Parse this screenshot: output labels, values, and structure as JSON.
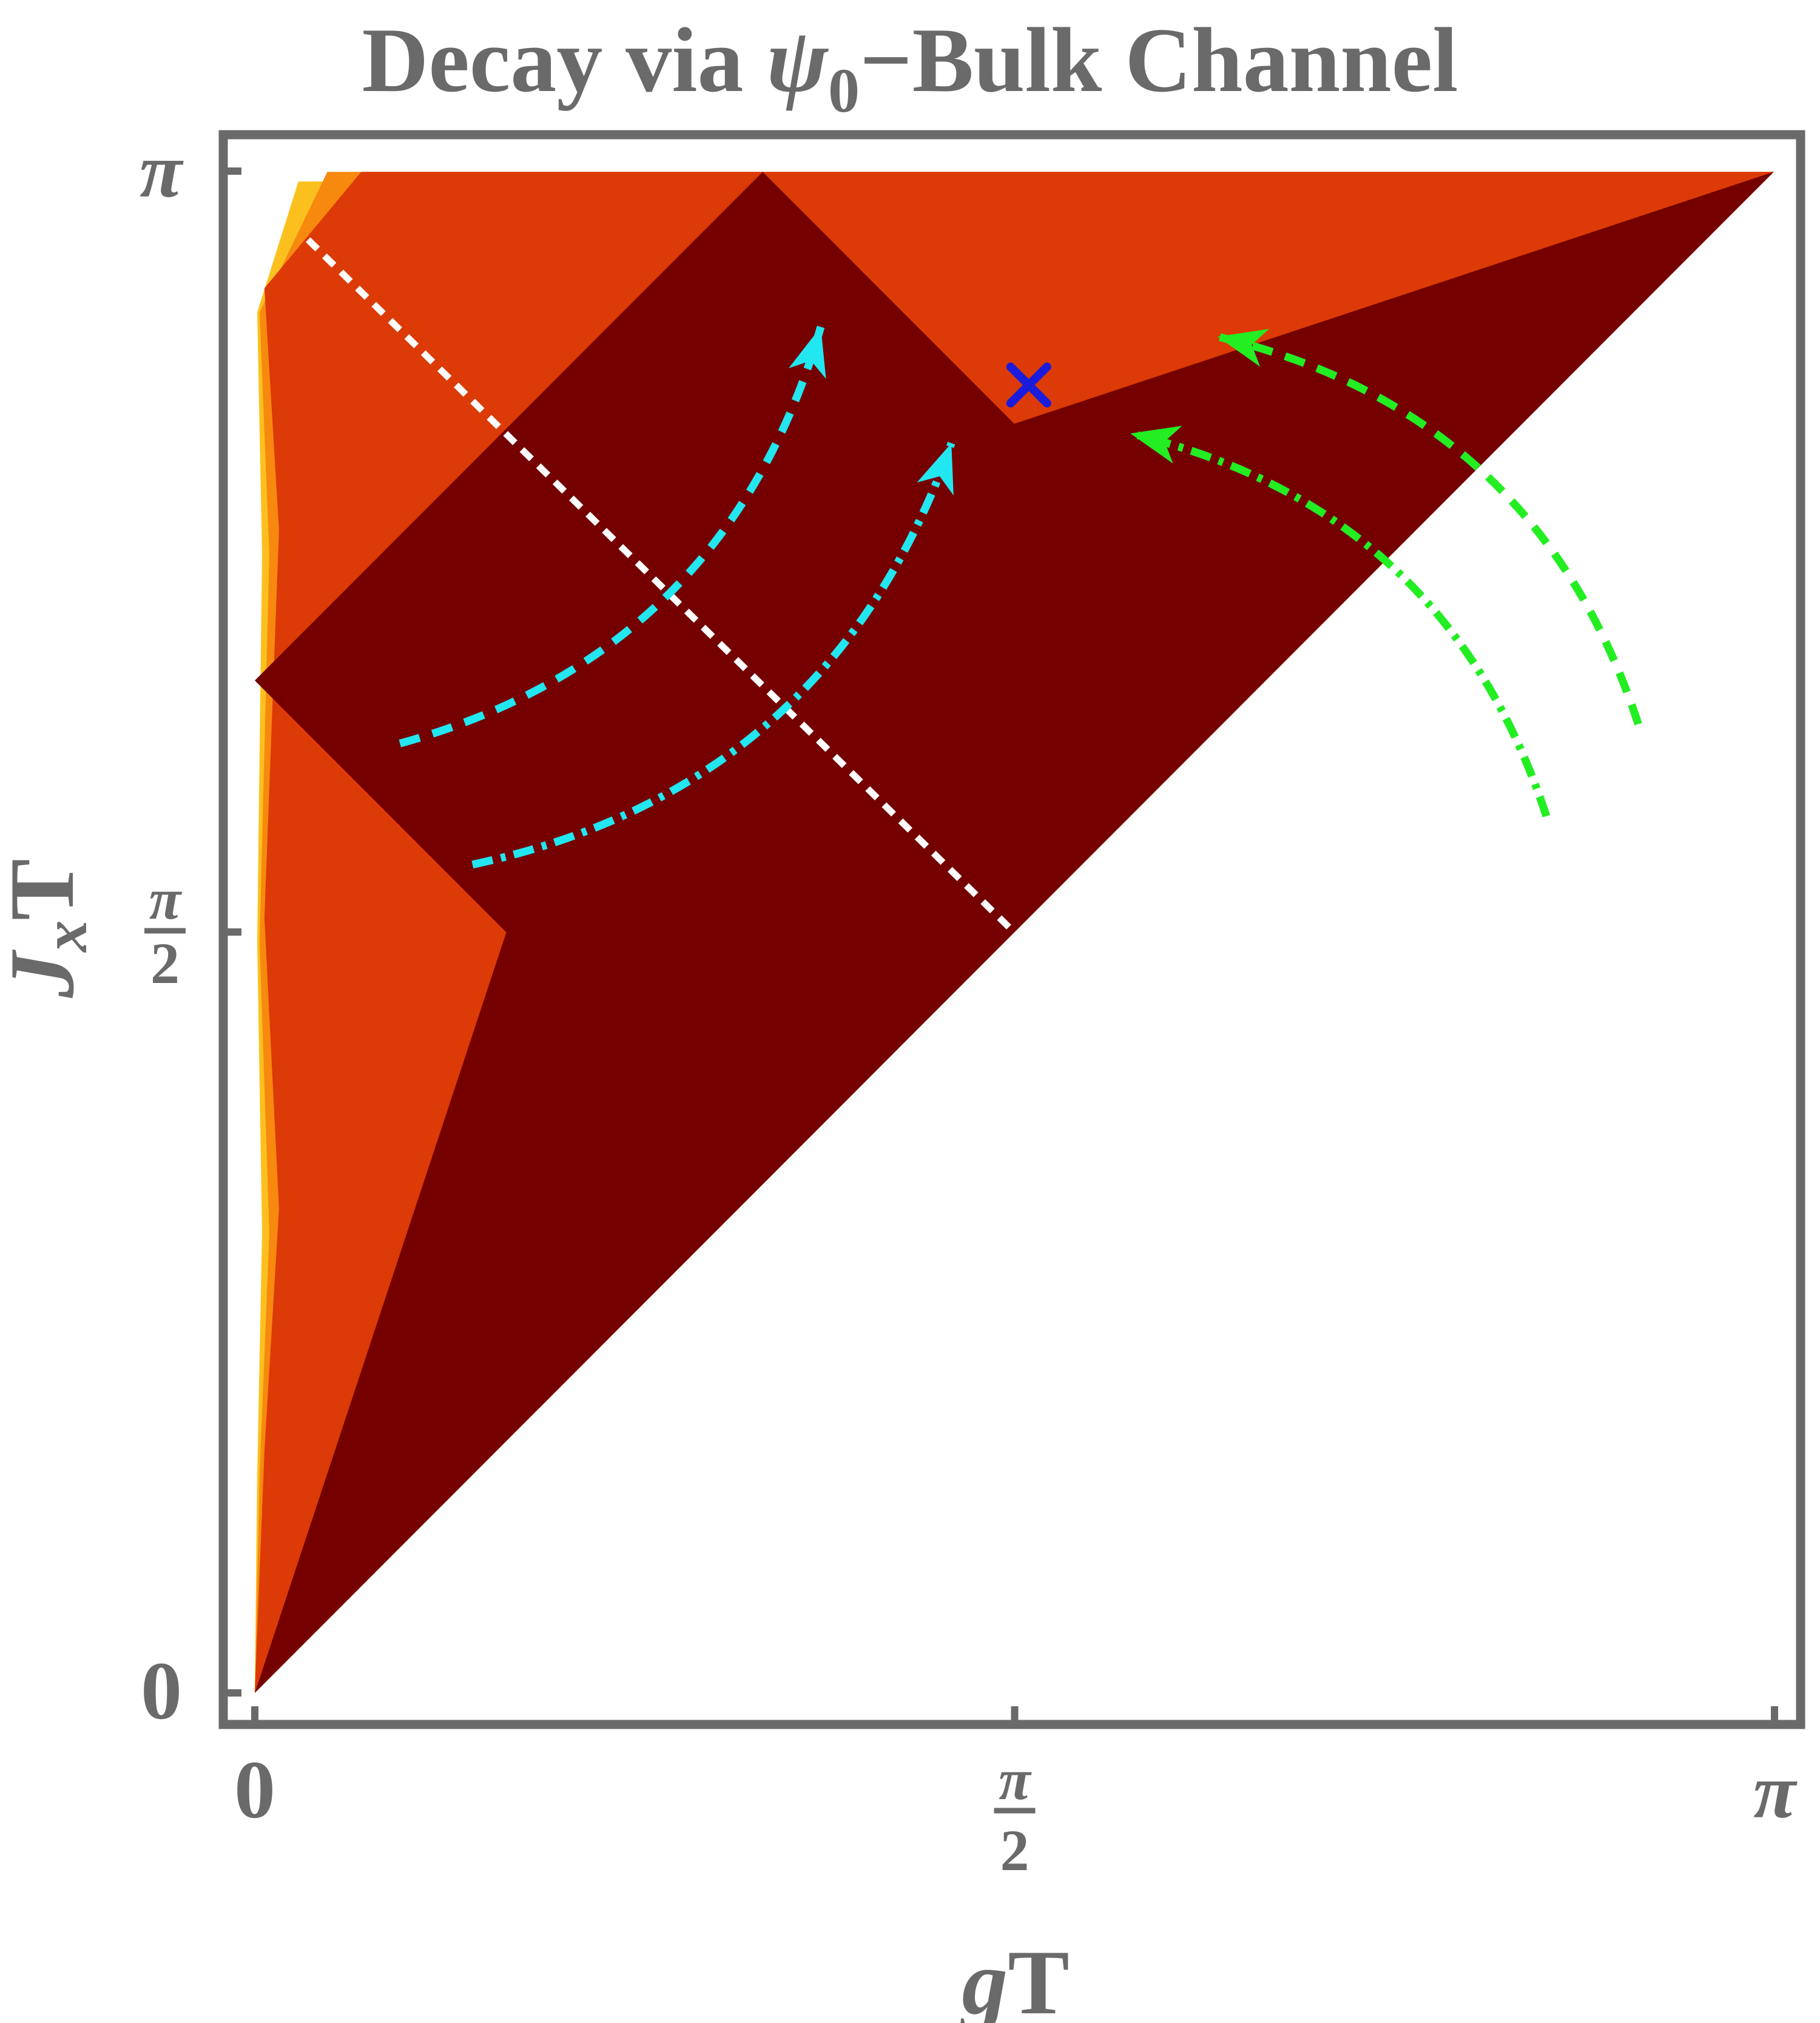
{
  "chart_data": {
    "type": "heatmap",
    "title": "Decay via ψ0−Bulk Channel",
    "title_parts": {
      "pre": "Decay via ",
      "symbol": "ψ",
      "subscript": "0",
      "post": "−Bulk Channel"
    },
    "xlabel": "gT",
    "xlabel_parts": {
      "var": "g",
      "rest": "T"
    },
    "ylabel": "JxT",
    "ylabel_parts": {
      "var": "J",
      "sub": "x",
      "rest": "T"
    },
    "xlim": [
      0,
      3.14159
    ],
    "ylim": [
      0,
      3.14159
    ],
    "x_ticks": [
      {
        "value": 0,
        "label": "0"
      },
      {
        "value": 1.5708,
        "label": "π",
        "denominator": "2"
      },
      {
        "value": 3.14159,
        "label": "π"
      }
    ],
    "y_ticks": [
      {
        "value": 0,
        "label": "0"
      },
      {
        "value": 1.5708,
        "label": "π",
        "denominator": "2"
      },
      {
        "value": 3.14159,
        "label": "π"
      }
    ],
    "colors": {
      "frame": "#6a6a6a",
      "dark_region": "#740000",
      "red_region": "#dc3a06",
      "orange_region": "#f7890f",
      "yellow_region": "#fcc01e",
      "cyan_arrows": "#22e6f0",
      "green_arrows": "#22ee22",
      "white_line": "#ffffff",
      "marker": "#1b1bdc"
    },
    "regions": [
      {
        "name": "dark",
        "color": "#740000",
        "polygon": [
          [
            0,
            0
          ],
          [
            0.52,
            1.57
          ],
          [
            0,
            2.09
          ],
          [
            1.05,
            3.14
          ],
          [
            1.57,
            2.62
          ],
          [
            3.14,
            3.14
          ]
        ]
      },
      {
        "name": "red",
        "color": "#dc3a06",
        "polygon": [
          [
            0,
            0
          ],
          [
            0.02,
            0.5
          ],
          [
            0.05,
            1.0
          ],
          [
            0.02,
            1.6
          ],
          [
            0.05,
            2.4
          ],
          [
            0.02,
            2.9
          ],
          [
            0.22,
            3.14
          ],
          [
            3.14,
            3.14
          ]
        ]
      },
      {
        "name": "orange",
        "color": "#f7890f",
        "polygon": [
          [
            0,
            0
          ],
          [
            0.01,
            0.45
          ],
          [
            0.03,
            0.95
          ],
          [
            0.01,
            1.55
          ],
          [
            0.03,
            2.35
          ],
          [
            0.01,
            2.85
          ],
          [
            0.15,
            3.14
          ],
          [
            3.14,
            3.14
          ]
        ]
      },
      {
        "name": "yellow",
        "color": "#fcc01e",
        "polygon": [
          [
            0,
            0
          ],
          [
            0.005,
            0.45
          ],
          [
            0.015,
            0.95
          ],
          [
            0.005,
            1.55
          ],
          [
            0.015,
            2.35
          ],
          [
            0.005,
            2.85
          ],
          [
            0.09,
            3.12
          ],
          [
            3.14,
            3.14
          ]
        ]
      }
    ],
    "annotations": {
      "white_dashed_line": {
        "from": [
          0.11,
          3.0
        ],
        "to": [
          1.57,
          1.57
        ]
      },
      "marker_x": {
        "x": 1.6,
        "y": 2.7
      },
      "cyan_dashed_arrow": {
        "start": [
          0.3,
          1.96
        ],
        "end": [
          1.17,
          2.82
        ]
      },
      "cyan_dashdot_arrow": {
        "start": [
          0.45,
          1.71
        ],
        "end": [
          1.44,
          2.58
        ]
      },
      "green_dashed_arrow": {
        "start": [
          2.86,
          2.0
        ],
        "end": [
          1.99,
          2.8
        ]
      },
      "green_dashdot_arrow": {
        "start": [
          2.67,
          1.81
        ],
        "end": [
          1.81,
          2.6
        ]
      }
    },
    "grid": false,
    "legend": "none"
  }
}
